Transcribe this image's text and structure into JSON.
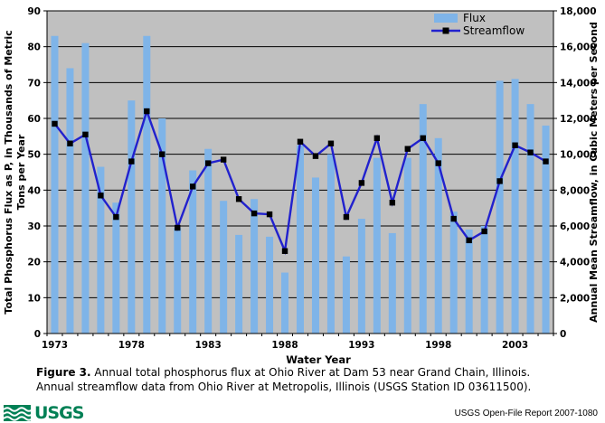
{
  "chart_data": {
    "type": "bar+line",
    "x": [
      1973,
      1974,
      1975,
      1976,
      1977,
      1978,
      1979,
      1980,
      1981,
      1982,
      1983,
      1984,
      1985,
      1986,
      1987,
      1988,
      1989,
      1990,
      1991,
      1992,
      1993,
      1994,
      1995,
      1996,
      1997,
      1998,
      1999,
      2000,
      2001,
      2002,
      2003,
      2004,
      2005
    ],
    "x_tick_labels": [
      1973,
      1978,
      1983,
      1988,
      1993,
      1998,
      2003
    ],
    "xlabel": "Water Year",
    "left_axis": {
      "title_line1": "Total Phosphorus Flux as P, in Thousands of Metric",
      "title_line2": "Tons per Year",
      "min": 0,
      "max": 90,
      "step": 10
    },
    "right_axis": {
      "title": "Annual Mean Streamflow, in Cubic Meters per Second",
      "min": 0,
      "max": 18000,
      "step": 2000
    },
    "series": [
      {
        "name": "Flux",
        "type": "bar",
        "axis": "left",
        "color": "#7FB4E8",
        "values": [
          83,
          74,
          81,
          46.5,
          36.5,
          65,
          83,
          60,
          29.5,
          45.5,
          51.5,
          37,
          27.5,
          37.5,
          27,
          17,
          52.5,
          43.5,
          50,
          21.5,
          32,
          49,
          28,
          49,
          64,
          54.5,
          34,
          29,
          30,
          70.5,
          71,
          64,
          58
        ]
      },
      {
        "name": "Streamflow",
        "type": "line",
        "axis": "right",
        "color": "#2121CE",
        "marker_color": "#000000",
        "values": [
          11700,
          10600,
          11100,
          7700,
          6500,
          9600,
          12400,
          10000,
          5900,
          8200,
          9500,
          9700,
          7500,
          6700,
          6650,
          4600,
          10700,
          9900,
          10600,
          6500,
          8400,
          10900,
          7300,
          10300,
          10900,
          9500,
          6400,
          5200,
          5700,
          8500,
          10500,
          10100,
          9600
        ]
      }
    ],
    "plot_bg": "#C0C0C0",
    "grid": true,
    "legend_position": "top-right"
  },
  "legend": {
    "flux_label": "Flux",
    "streamflow_label": "Streamflow"
  },
  "caption": {
    "figure_label": "Figure 3.",
    "line1": " Annual total phosphorus flux at Ohio River at Dam 53 near Grand Chain, Illinois.",
    "line2": "Annual streamflow data from Ohio River at Metropolis, Illinois (USGS Station ID 03611500)."
  },
  "footer": {
    "logo_text": "USGS",
    "report": "USGS Open-File Report 2007-1080"
  }
}
